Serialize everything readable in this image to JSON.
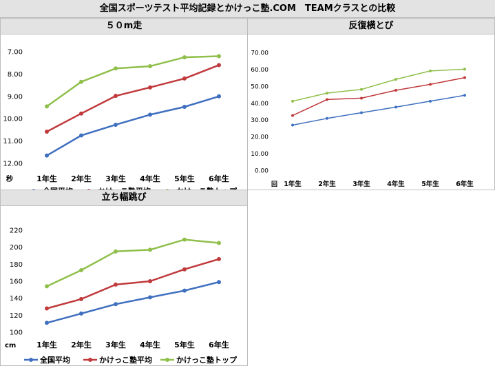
{
  "page": {
    "title": "全国スポーツテスト平均記録とかけっこ塾.COM　TEAMクラスとの比較"
  },
  "colors": {
    "national": "#3f6fbf",
    "juku_avg": "#c0393b",
    "juku_top": "#8fbf4a"
  },
  "chart_data": [
    {
      "id": "dash50m",
      "type": "line",
      "title": "５０m走",
      "unit_label": "秒",
      "categories": [
        "1年生",
        "2年生",
        "3年生",
        "4年生",
        "5年生",
        "6年生"
      ],
      "yticks": [
        "7.00",
        "8.00",
        "9.00",
        "10.00",
        "11.00",
        "12.00"
      ],
      "ylim": [
        7,
        12
      ],
      "y_inverted": true,
      "grid": false,
      "legend_position": "bottom",
      "series": [
        {
          "name": "全国平均",
          "color": "#3f6fbf",
          "values": [
            11.65,
            10.75,
            10.27,
            9.82,
            9.47,
            9.0
          ]
        },
        {
          "name": "かけっこ塾平均",
          "color": "#c0393b",
          "values": [
            10.58,
            9.77,
            8.98,
            8.6,
            8.2,
            7.6
          ]
        },
        {
          "name": "かけっこ塾トップ",
          "color": "#8fbf4a",
          "values": [
            9.45,
            8.35,
            7.75,
            7.65,
            7.25,
            7.2
          ]
        }
      ]
    },
    {
      "id": "sidejump",
      "type": "line",
      "title": "反復横とび",
      "unit_label": "回",
      "categories": [
        "1年生",
        "2年生",
        "3年生",
        "4年生",
        "5年生",
        "6年生"
      ],
      "yticks": [
        "0.00",
        "10.00",
        "20.00",
        "30.00",
        "40.00",
        "50.00",
        "60.00",
        "70.00"
      ],
      "ylim": [
        0,
        70
      ],
      "y_inverted": false,
      "grid": false,
      "legend_position": "bottom",
      "series": [
        {
          "name": "全国平均",
          "color": "#3f6fbf",
          "values": [
            26.8,
            30.8,
            34.2,
            37.5,
            41.0,
            44.5
          ]
        },
        {
          "name": "かけっこ塾平均",
          "color": "#c0393b",
          "values": [
            32.5,
            42.0,
            42.8,
            47.5,
            51.0,
            55.0
          ]
        },
        {
          "name": "かけっこ塾トップ",
          "color": "#8fbf4a",
          "values": [
            41.0,
            45.8,
            48.0,
            54.0,
            59.0,
            60.0
          ]
        }
      ]
    },
    {
      "id": "broadjump",
      "type": "line",
      "title": "立ち幅跳び",
      "unit_label": "cm",
      "categories": [
        "1年生",
        "2年生",
        "3年生",
        "4年生",
        "5年生",
        "6年生"
      ],
      "yticks": [
        "100",
        "120",
        "140",
        "160",
        "180",
        "200",
        "220"
      ],
      "ylim": [
        100,
        220
      ],
      "y_inverted": false,
      "grid": false,
      "legend_position": "bottom",
      "series": [
        {
          "name": "全国平均",
          "color": "#3f6fbf",
          "values": [
            111,
            122,
            133,
            141,
            149,
            159
          ]
        },
        {
          "name": "かけっこ塾平均",
          "color": "#c0393b",
          "values": [
            128,
            139,
            156,
            160,
            174,
            186
          ]
        },
        {
          "name": "かけっこ塾トップ",
          "color": "#8fbf4a",
          "values": [
            154,
            173,
            195,
            197,
            209,
            205
          ]
        }
      ]
    }
  ]
}
